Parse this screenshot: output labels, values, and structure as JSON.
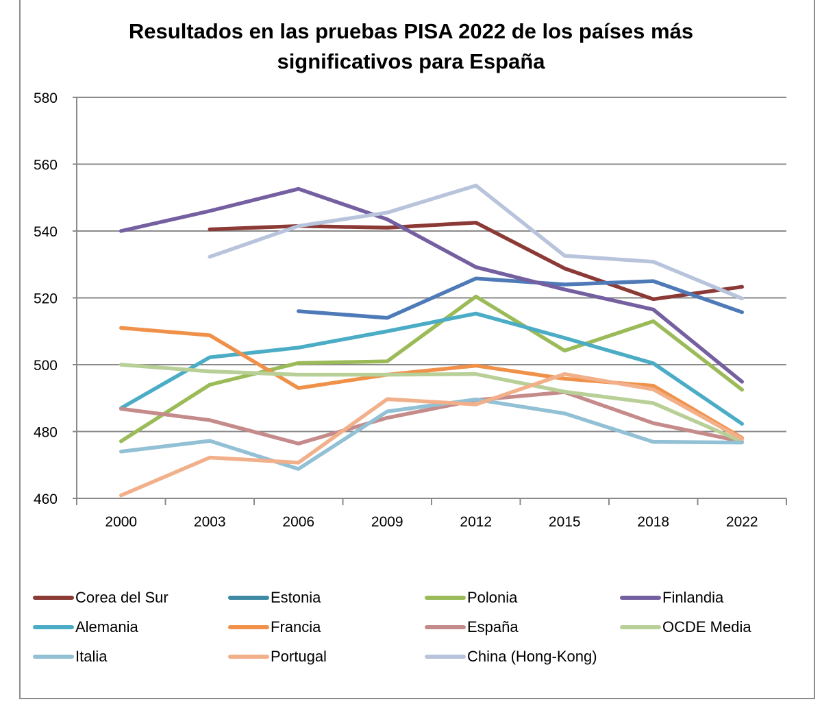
{
  "chart_data": {
    "type": "line",
    "title": "Resultados en las pruebas PISA 2022 de los países más significativos para España",
    "title_lines": [
      "Resultados en las pruebas PISA 2022 de los países más",
      "significativos para España"
    ],
    "xlabel": "",
    "ylabel": "",
    "categories": [
      "2000",
      "2003",
      "2006",
      "2009",
      "2012",
      "2015",
      "2018",
      "2022"
    ],
    "ylim": [
      460,
      580
    ],
    "yticks": [
      460,
      480,
      500,
      520,
      540,
      560,
      580
    ],
    "grid": true,
    "legend_position": "bottom",
    "series": [
      {
        "name": "Corea del Sur",
        "color": "#8B3A36",
        "values": [
          null,
          540.5,
          541.5,
          541,
          542.5,
          528.8,
          519.6,
          523.3
        ]
      },
      {
        "name": "Estonia",
        "color": "#4F7AB8",
        "legend_color": "#3E8AA3",
        "values": [
          null,
          null,
          516,
          514,
          525.8,
          524,
          525,
          515.7
        ]
      },
      {
        "name": "Polonia",
        "color": "#9BBB59",
        "values": [
          477.1,
          494,
          500.5,
          501,
          520.4,
          504.2,
          513,
          492.5
        ]
      },
      {
        "name": "Finlandia",
        "color": "#7460A0",
        "values": [
          540,
          546,
          552.6,
          543.5,
          529.2,
          522.5,
          516.5,
          494.9
        ]
      },
      {
        "name": "Alemania",
        "color": "#4BACC6",
        "values": [
          487,
          502.2,
          505.1,
          510,
          515.3,
          508,
          500.4,
          482.3
        ]
      },
      {
        "name": "Francia",
        "color": "#F0914A",
        "values": [
          511,
          508.8,
          493,
          497,
          499.7,
          495.8,
          493.7,
          478.1
        ]
      },
      {
        "name": "España",
        "color": "#C48B8A",
        "values": [
          486.8,
          483.4,
          476.4,
          484.1,
          489.4,
          491.8,
          482.5,
          477
        ]
      },
      {
        "name": "OCDE Media",
        "color": "#B8CF97",
        "values": [
          500,
          498,
          497,
          497,
          497.2,
          491.9,
          488.5,
          477
        ]
      },
      {
        "name": "Italia",
        "color": "#92C0D4",
        "values": [
          474,
          477.2,
          468.8,
          486,
          489.6,
          485.4,
          476.9,
          476.7
        ]
      },
      {
        "name": "Portugal",
        "color": "#F2B08A",
        "values": [
          460.9,
          472.2,
          470.7,
          489.7,
          488.1,
          497.2,
          492.6,
          477.8
        ]
      },
      {
        "name": "China (Hong-Kong)",
        "color": "#B8C4DC",
        "values": [
          null,
          532.3,
          541.5,
          545.5,
          553.6,
          532.6,
          530.8,
          519.8
        ]
      }
    ]
  }
}
